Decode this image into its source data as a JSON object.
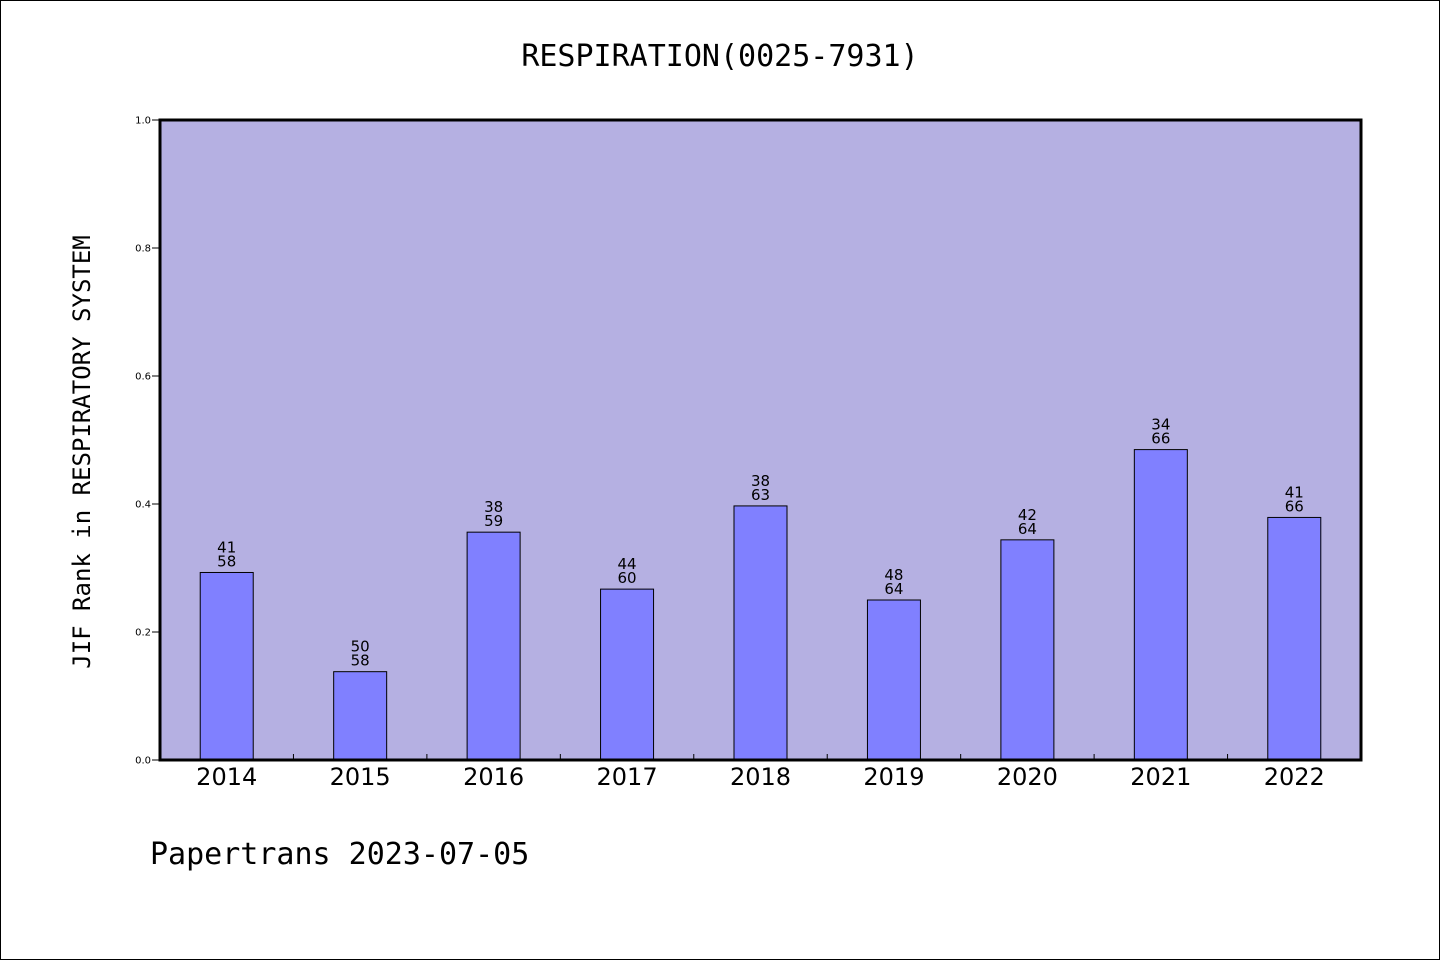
{
  "chart_data": {
    "type": "bar",
    "title": "RESPIRATION(0025-7931)",
    "xlabel": "",
    "ylabel": "JIF Rank in RESPIRATORY SYSTEM",
    "ylim": [
      0,
      1.0
    ],
    "yticks": [
      "0.0",
      "0.2",
      "0.4",
      "0.6",
      "0.8",
      "1.0"
    ],
    "categories": [
      "2014",
      "2015",
      "2016",
      "2017",
      "2018",
      "2019",
      "2020",
      "2021",
      "2022"
    ],
    "values": [
      0.293,
      0.138,
      0.356,
      0.267,
      0.397,
      0.25,
      0.344,
      0.485,
      0.379
    ],
    "rank": [
      "41",
      "50",
      "38",
      "44",
      "38",
      "48",
      "42",
      "34",
      "41"
    ],
    "total": [
      "58",
      "58",
      "59",
      "60",
      "63",
      "64",
      "64",
      "66",
      "66"
    ],
    "grid": false,
    "legend": "none",
    "plot_background": "#b5b0e2",
    "bar_color": "#8080ff"
  },
  "footer": "Papertrans 2023-07-05"
}
